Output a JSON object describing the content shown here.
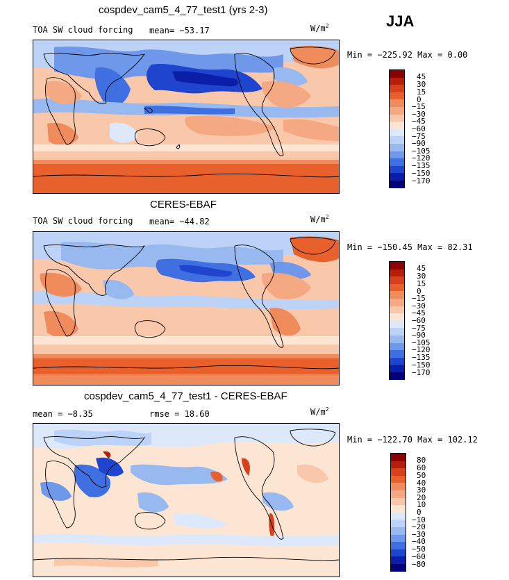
{
  "season": "JJA",
  "panels": [
    {
      "title": "cospdev_cam5_4_77_test1 (yrs 2-3)",
      "subtitle": "TOA SW cloud forcing",
      "mean": "mean= −53.17",
      "units": "W/m",
      "units_sup": "2",
      "minmax": "Min = −225.92 Max =    0.00",
      "levels": [
        "45",
        "30",
        "15",
        "0",
        "−15",
        "−30",
        "−45",
        "−60",
        "−75",
        "−90",
        "−105",
        "−120",
        "−135",
        "−150",
        "−170"
      ]
    },
    {
      "title": "CERES-EBAF",
      "subtitle": "TOA SW cloud forcing",
      "mean": "mean= −44.82",
      "units": "W/m",
      "units_sup": "2",
      "minmax": "Min = −150.45 Max =  82.31",
      "levels": [
        "45",
        "30",
        "15",
        "0",
        "−15",
        "−30",
        "−45",
        "−60",
        "−75",
        "−90",
        "−105",
        "−120",
        "−135",
        "−150",
        "−170"
      ]
    },
    {
      "title": "cospdev_cam5_4_77_test1 - CERES-EBAF",
      "mean": "mean =   −8.35",
      "rmse": "rmse =   18.60",
      "units": "W/m",
      "units_sup": "2",
      "minmax": "Min = −122.70 Max = 102.12",
      "levels": [
        "80",
        "60",
        "50",
        "40",
        "30",
        "20",
        "10",
        "0",
        "−10",
        "−20",
        "−30",
        "−40",
        "−50",
        "−60",
        "−80"
      ]
    }
  ],
  "colors": {
    "scale": [
      "#8b0000",
      "#b51f0a",
      "#d6401a",
      "#e8602c",
      "#f08b5c",
      "#f5a983",
      "#f9c8ab",
      "#fde5d3",
      "#dde9fb",
      "#bcd2f6",
      "#98b8f0",
      "#6f97ea",
      "#3f6fe0",
      "#1f45cf",
      "#0a1ea8",
      "#00007a"
    ]
  }
}
